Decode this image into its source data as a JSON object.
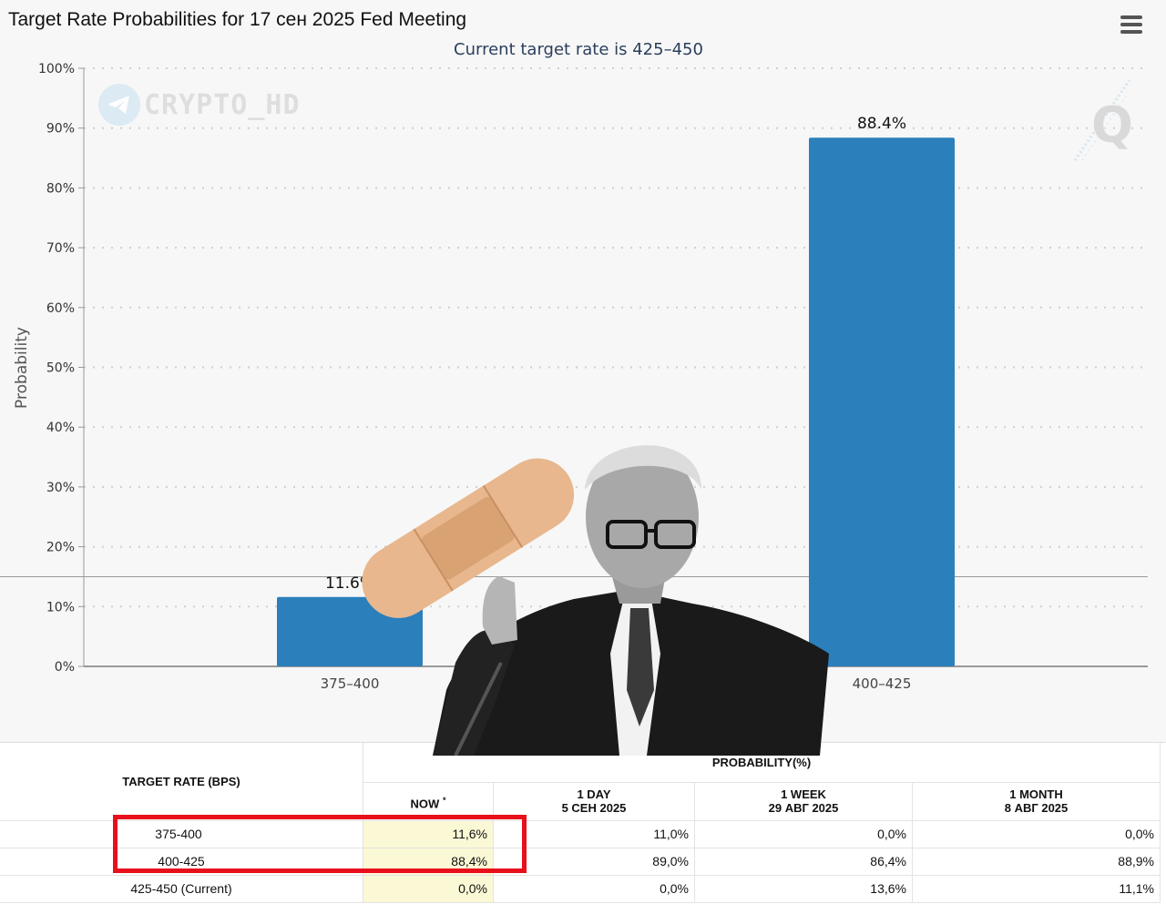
{
  "page": {
    "title": "Target Rate Probabilities for 17 сен 2025 Fed Meeting",
    "subtitle": "Current target rate is 425–450",
    "watermark": "CRYPTO_HD",
    "logo_letter": "Q"
  },
  "chart_data": {
    "type": "bar",
    "categories": [
      "375–400",
      "400–425"
    ],
    "values": [
      11.6,
      88.4
    ],
    "data_labels": [
      "11.6%",
      "88.4%"
    ],
    "ylabel": "Probability",
    "ylim": [
      0,
      100
    ],
    "yticks": [
      "0%",
      "10%",
      "20%",
      "30%",
      "40%",
      "50%",
      "60%",
      "70%",
      "80%",
      "90%",
      "100%"
    ],
    "grid": true,
    "bar_color": "#2b7fbb"
  },
  "table": {
    "header_left": "TARGET RATE (BPS)",
    "header_group": "PROBABILITY(%)",
    "columns": [
      {
        "line1": "NOW",
        "line2": "",
        "mark": "*"
      },
      {
        "line1": "1 DAY",
        "line2": "5 СЕН 2025"
      },
      {
        "line1": "1 WEEK",
        "line2": "29 АВГ 2025"
      },
      {
        "line1": "1 MONTH",
        "line2": "8 АВГ 2025"
      }
    ],
    "rows": [
      {
        "rate": "375-400",
        "values": [
          "11,6%",
          "11,0%",
          "0,0%",
          "0,0%"
        ]
      },
      {
        "rate": "400-425",
        "values": [
          "88,4%",
          "89,0%",
          "86,4%",
          "88,9%"
        ]
      },
      {
        "rate": "425-450 (Current)",
        "values": [
          "0,0%",
          "0,0%",
          "13,6%",
          "11,1%"
        ]
      }
    ]
  }
}
